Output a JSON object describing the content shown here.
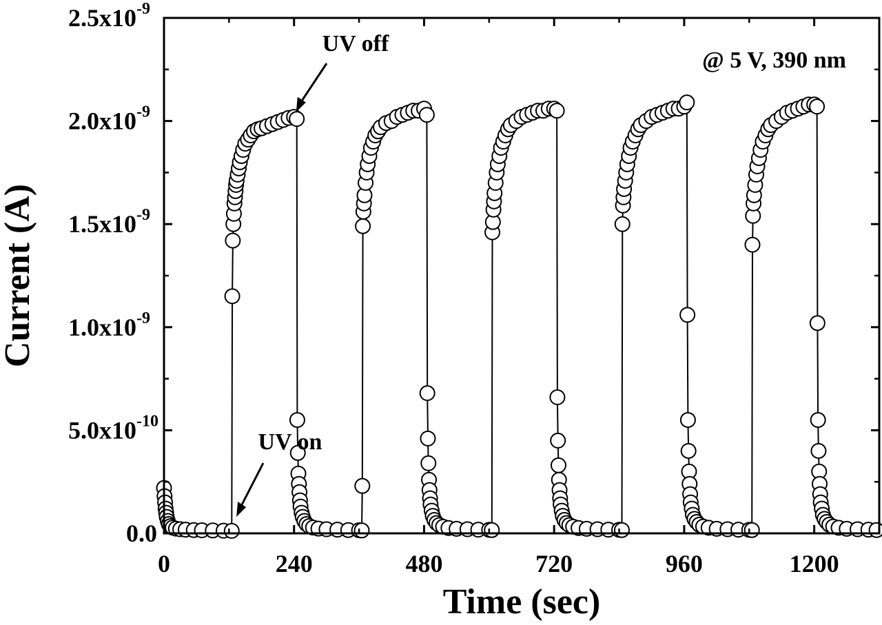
{
  "chart_data": {
    "type": "scatter",
    "xlabel": "Time (sec)",
    "ylabel": "Current (A)",
    "xlim": [
      0,
      1320
    ],
    "ylim": [
      0,
      2.5e-09
    ],
    "x_ticks": [
      {
        "value": 0,
        "label": "0"
      },
      {
        "value": 240,
        "label": "240"
      },
      {
        "value": 480,
        "label": "480"
      },
      {
        "value": 720,
        "label": "720"
      },
      {
        "value": 960,
        "label": "960"
      },
      {
        "value": 1200,
        "label": "1200"
      }
    ],
    "y_ticks": [
      {
        "value": 0,
        "mantissa": "0.0",
        "exponent": ""
      },
      {
        "value": 5e-10,
        "mantissa": "5.0x10",
        "exponent": "-10"
      },
      {
        "value": 1e-09,
        "mantissa": "1.0x10",
        "exponent": "-9"
      },
      {
        "value": 1.5e-09,
        "mantissa": "1.5x10",
        "exponent": "-9"
      },
      {
        "value": 2e-09,
        "mantissa": "2.0x10",
        "exponent": "-9"
      },
      {
        "value": 2.5e-09,
        "mantissa": "2.5x10",
        "exponent": "-9"
      }
    ],
    "grid": false,
    "marker": "open-circle",
    "line_color": "#000000",
    "marker_fill": "#ffffff",
    "annotations": [
      {
        "text": "UV off",
        "x": 249,
        "y": 2.05e-09
      },
      {
        "text": "UV on",
        "x": 126,
        "y": 0.0
      },
      {
        "text": "@ 5 V, 390 nm",
        "position": "top-right"
      }
    ],
    "series": [
      {
        "points": [
          [
            0,
            2.2e-10
          ],
          [
            1,
            1.8e-10
          ],
          [
            2,
            1.5e-10
          ],
          [
            3,
            1.2e-10
          ],
          [
            4,
            1e-10
          ],
          [
            5,
            8e-11
          ],
          [
            7,
            6e-11
          ],
          [
            9,
            4.5e-11
          ],
          [
            12,
            3.5e-11
          ],
          [
            16,
            2.8e-11
          ],
          [
            22,
            2.3e-11
          ],
          [
            30,
            2e-11
          ],
          [
            40,
            1.8e-11
          ],
          [
            55,
            1.6e-11
          ],
          [
            70,
            1.5e-11
          ],
          [
            90,
            1.4e-11
          ],
          [
            110,
            1.3e-11
          ],
          [
            125,
            1.2e-11
          ],
          [
            126,
            1.15e-09
          ],
          [
            127,
            1.42e-09
          ],
          [
            128,
            1.5e-09
          ],
          [
            129,
            1.55e-09
          ],
          [
            130,
            1.6e-09
          ],
          [
            131,
            1.63e-09
          ],
          [
            132,
            1.66e-09
          ],
          [
            133,
            1.69e-09
          ],
          [
            134,
            1.71e-09
          ],
          [
            136,
            1.74e-09
          ],
          [
            138,
            1.77e-09
          ],
          [
            140,
            1.8e-09
          ],
          [
            143,
            1.83e-09
          ],
          [
            146,
            1.86e-09
          ],
          [
            150,
            1.89e-09
          ],
          [
            155,
            1.91e-09
          ],
          [
            160,
            1.93e-09
          ],
          [
            166,
            1.95e-09
          ],
          [
            173,
            1.96e-09
          ],
          [
            180,
            1.965e-09
          ],
          [
            190,
            1.975e-09
          ],
          [
            200,
            1.985e-09
          ],
          [
            210,
            1.995e-09
          ],
          [
            220,
            2.005e-09
          ],
          [
            230,
            2.015e-09
          ],
          [
            240,
            2.02e-09
          ],
          [
            245,
            2.01e-09
          ],
          [
            246,
            5.5e-10
          ],
          [
            247,
            3.9e-10
          ],
          [
            248,
            2.9e-10
          ],
          [
            249,
            2.4e-10
          ],
          [
            250,
            2e-10
          ],
          [
            251,
            1.6e-10
          ],
          [
            252,
            1.3e-10
          ],
          [
            254,
            1e-10
          ],
          [
            256,
            8e-11
          ],
          [
            259,
            6e-11
          ],
          [
            263,
            4.5e-11
          ],
          [
            268,
            3.5e-11
          ],
          [
            275,
            2.8e-11
          ],
          [
            285,
            2.3e-11
          ],
          [
            300,
            2e-11
          ],
          [
            320,
            1.8e-11
          ],
          [
            340,
            1.6e-11
          ],
          [
            360,
            1.5e-11
          ],
          [
            365,
            1.4e-11
          ],
          [
            366,
            2.3e-10
          ],
          [
            367,
            1.49e-09
          ],
          [
            368,
            1.56e-09
          ],
          [
            369,
            1.6e-09
          ],
          [
            370,
            1.64e-09
          ],
          [
            372,
            1.7e-09
          ],
          [
            374,
            1.75e-09
          ],
          [
            376,
            1.79e-09
          ],
          [
            379,
            1.83e-09
          ],
          [
            382,
            1.87e-09
          ],
          [
            386,
            1.9e-09
          ],
          [
            390,
            1.93e-09
          ],
          [
            395,
            1.95e-09
          ],
          [
            400,
            1.97e-09
          ],
          [
            410,
            1.99e-09
          ],
          [
            420,
            2e-09
          ],
          [
            430,
            2.02e-09
          ],
          [
            440,
            2.03e-09
          ],
          [
            450,
            2.04e-09
          ],
          [
            460,
            2.05e-09
          ],
          [
            470,
            2.05e-09
          ],
          [
            480,
            2.06e-09
          ],
          [
            485,
            2.03e-09
          ],
          [
            486,
            6.8e-10
          ],
          [
            487,
            4.6e-10
          ],
          [
            488,
            3.4e-10
          ],
          [
            489,
            2.6e-10
          ],
          [
            490,
            2.1e-10
          ],
          [
            491,
            1.7e-10
          ],
          [
            492,
            1.4e-10
          ],
          [
            494,
            1.1e-10
          ],
          [
            496,
            8.5e-11
          ],
          [
            499,
            6.5e-11
          ],
          [
            503,
            5e-11
          ],
          [
            508,
            4e-11
          ],
          [
            515,
            3.2e-11
          ],
          [
            525,
            2.6e-11
          ],
          [
            540,
            2.2e-11
          ],
          [
            560,
            2e-11
          ],
          [
            580,
            1.8e-11
          ],
          [
            600,
            1.7e-11
          ],
          [
            605,
            1.6e-11
          ],
          [
            606,
            1.46e-09
          ],
          [
            607,
            1.51e-09
          ],
          [
            608,
            1.57e-09
          ],
          [
            609,
            1.61e-09
          ],
          [
            610,
            1.65e-09
          ],
          [
            612,
            1.7e-09
          ],
          [
            614,
            1.75e-09
          ],
          [
            616,
            1.79e-09
          ],
          [
            619,
            1.83e-09
          ],
          [
            622,
            1.87e-09
          ],
          [
            626,
            1.9e-09
          ],
          [
            630,
            1.93e-09
          ],
          [
            635,
            1.96e-09
          ],
          [
            640,
            1.98e-09
          ],
          [
            650,
            2e-09
          ],
          [
            660,
            2.02e-09
          ],
          [
            670,
            2.03e-09
          ],
          [
            680,
            2.04e-09
          ],
          [
            690,
            2.05e-09
          ],
          [
            700,
            2.05e-09
          ],
          [
            710,
            2.06e-09
          ],
          [
            720,
            2.06e-09
          ],
          [
            725,
            2.05e-09
          ],
          [
            726,
            6.6e-10
          ],
          [
            727,
            4.5e-10
          ],
          [
            728,
            3.3e-10
          ],
          [
            729,
            2.6e-10
          ],
          [
            730,
            2.1e-10
          ],
          [
            731,
            1.7e-10
          ],
          [
            732,
            1.4e-10
          ],
          [
            734,
            1.1e-10
          ],
          [
            736,
            8.5e-11
          ],
          [
            739,
            6.5e-11
          ],
          [
            743,
            5e-11
          ],
          [
            748,
            4e-11
          ],
          [
            755,
            3.2e-11
          ],
          [
            765,
            2.6e-11
          ],
          [
            780,
            2.2e-11
          ],
          [
            800,
            2e-11
          ],
          [
            820,
            1.8e-11
          ],
          [
            840,
            1.7e-11
          ],
          [
            845,
            1.6e-11
          ],
          [
            846,
            1.5e-09
          ],
          [
            847,
            1.59e-09
          ],
          [
            848,
            1.63e-09
          ],
          [
            849,
            1.67e-09
          ],
          [
            851,
            1.71e-09
          ],
          [
            853,
            1.75e-09
          ],
          [
            855,
            1.79e-09
          ],
          [
            858,
            1.83e-09
          ],
          [
            861,
            1.87e-09
          ],
          [
            865,
            1.9e-09
          ],
          [
            870,
            1.93e-09
          ],
          [
            875,
            1.96e-09
          ],
          [
            880,
            1.98e-09
          ],
          [
            890,
            2e-09
          ],
          [
            900,
            2.02e-09
          ],
          [
            910,
            2.03e-09
          ],
          [
            920,
            2.04e-09
          ],
          [
            930,
            2.05e-09
          ],
          [
            940,
            2.06e-09
          ],
          [
            950,
            2.06e-09
          ],
          [
            960,
            2.07e-09
          ],
          [
            965,
            2.09e-09
          ],
          [
            966,
            1.06e-09
          ],
          [
            967,
            5.5e-10
          ],
          [
            968,
            4e-10
          ],
          [
            969,
            3e-10
          ],
          [
            970,
            2.4e-10
          ],
          [
            971,
            1.9e-10
          ],
          [
            972,
            1.5e-10
          ],
          [
            974,
            1.2e-10
          ],
          [
            976,
            9e-11
          ],
          [
            979,
            7e-11
          ],
          [
            983,
            5.5e-11
          ],
          [
            988,
            4.2e-11
          ],
          [
            995,
            3.3e-11
          ],
          [
            1005,
            2.7e-11
          ],
          [
            1020,
            2.2e-11
          ],
          [
            1040,
            2e-11
          ],
          [
            1060,
            1.8e-11
          ],
          [
            1080,
            1.7e-11
          ],
          [
            1085,
            1.6e-11
          ],
          [
            1086,
            1.4e-09
          ],
          [
            1087,
            1.54e-09
          ],
          [
            1088,
            1.6e-09
          ],
          [
            1089,
            1.64e-09
          ],
          [
            1091,
            1.69e-09
          ],
          [
            1093,
            1.74e-09
          ],
          [
            1095,
            1.78e-09
          ],
          [
            1098,
            1.82e-09
          ],
          [
            1101,
            1.86e-09
          ],
          [
            1105,
            1.9e-09
          ],
          [
            1110,
            1.93e-09
          ],
          [
            1115,
            1.96e-09
          ],
          [
            1120,
            1.98e-09
          ],
          [
            1130,
            2e-09
          ],
          [
            1140,
            2.02e-09
          ],
          [
            1150,
            2.04e-09
          ],
          [
            1160,
            2.05e-09
          ],
          [
            1170,
            2.06e-09
          ],
          [
            1180,
            2.07e-09
          ],
          [
            1190,
            2.08e-09
          ],
          [
            1200,
            2.08e-09
          ],
          [
            1205,
            2.07e-09
          ],
          [
            1206,
            1.02e-09
          ],
          [
            1207,
            5.5e-10
          ],
          [
            1208,
            4e-10
          ],
          [
            1209,
            3e-10
          ],
          [
            1210,
            2.4e-10
          ],
          [
            1211,
            1.9e-10
          ],
          [
            1212,
            1.5e-10
          ],
          [
            1214,
            1.2e-10
          ],
          [
            1216,
            9e-11
          ],
          [
            1219,
            7e-11
          ],
          [
            1223,
            5.5e-11
          ],
          [
            1228,
            4.2e-11
          ],
          [
            1235,
            3.3e-11
          ],
          [
            1245,
            2.7e-11
          ],
          [
            1260,
            2.2e-11
          ],
          [
            1280,
            2e-11
          ],
          [
            1300,
            1.8e-11
          ],
          [
            1315,
            1.6e-11
          ]
        ]
      }
    ]
  }
}
